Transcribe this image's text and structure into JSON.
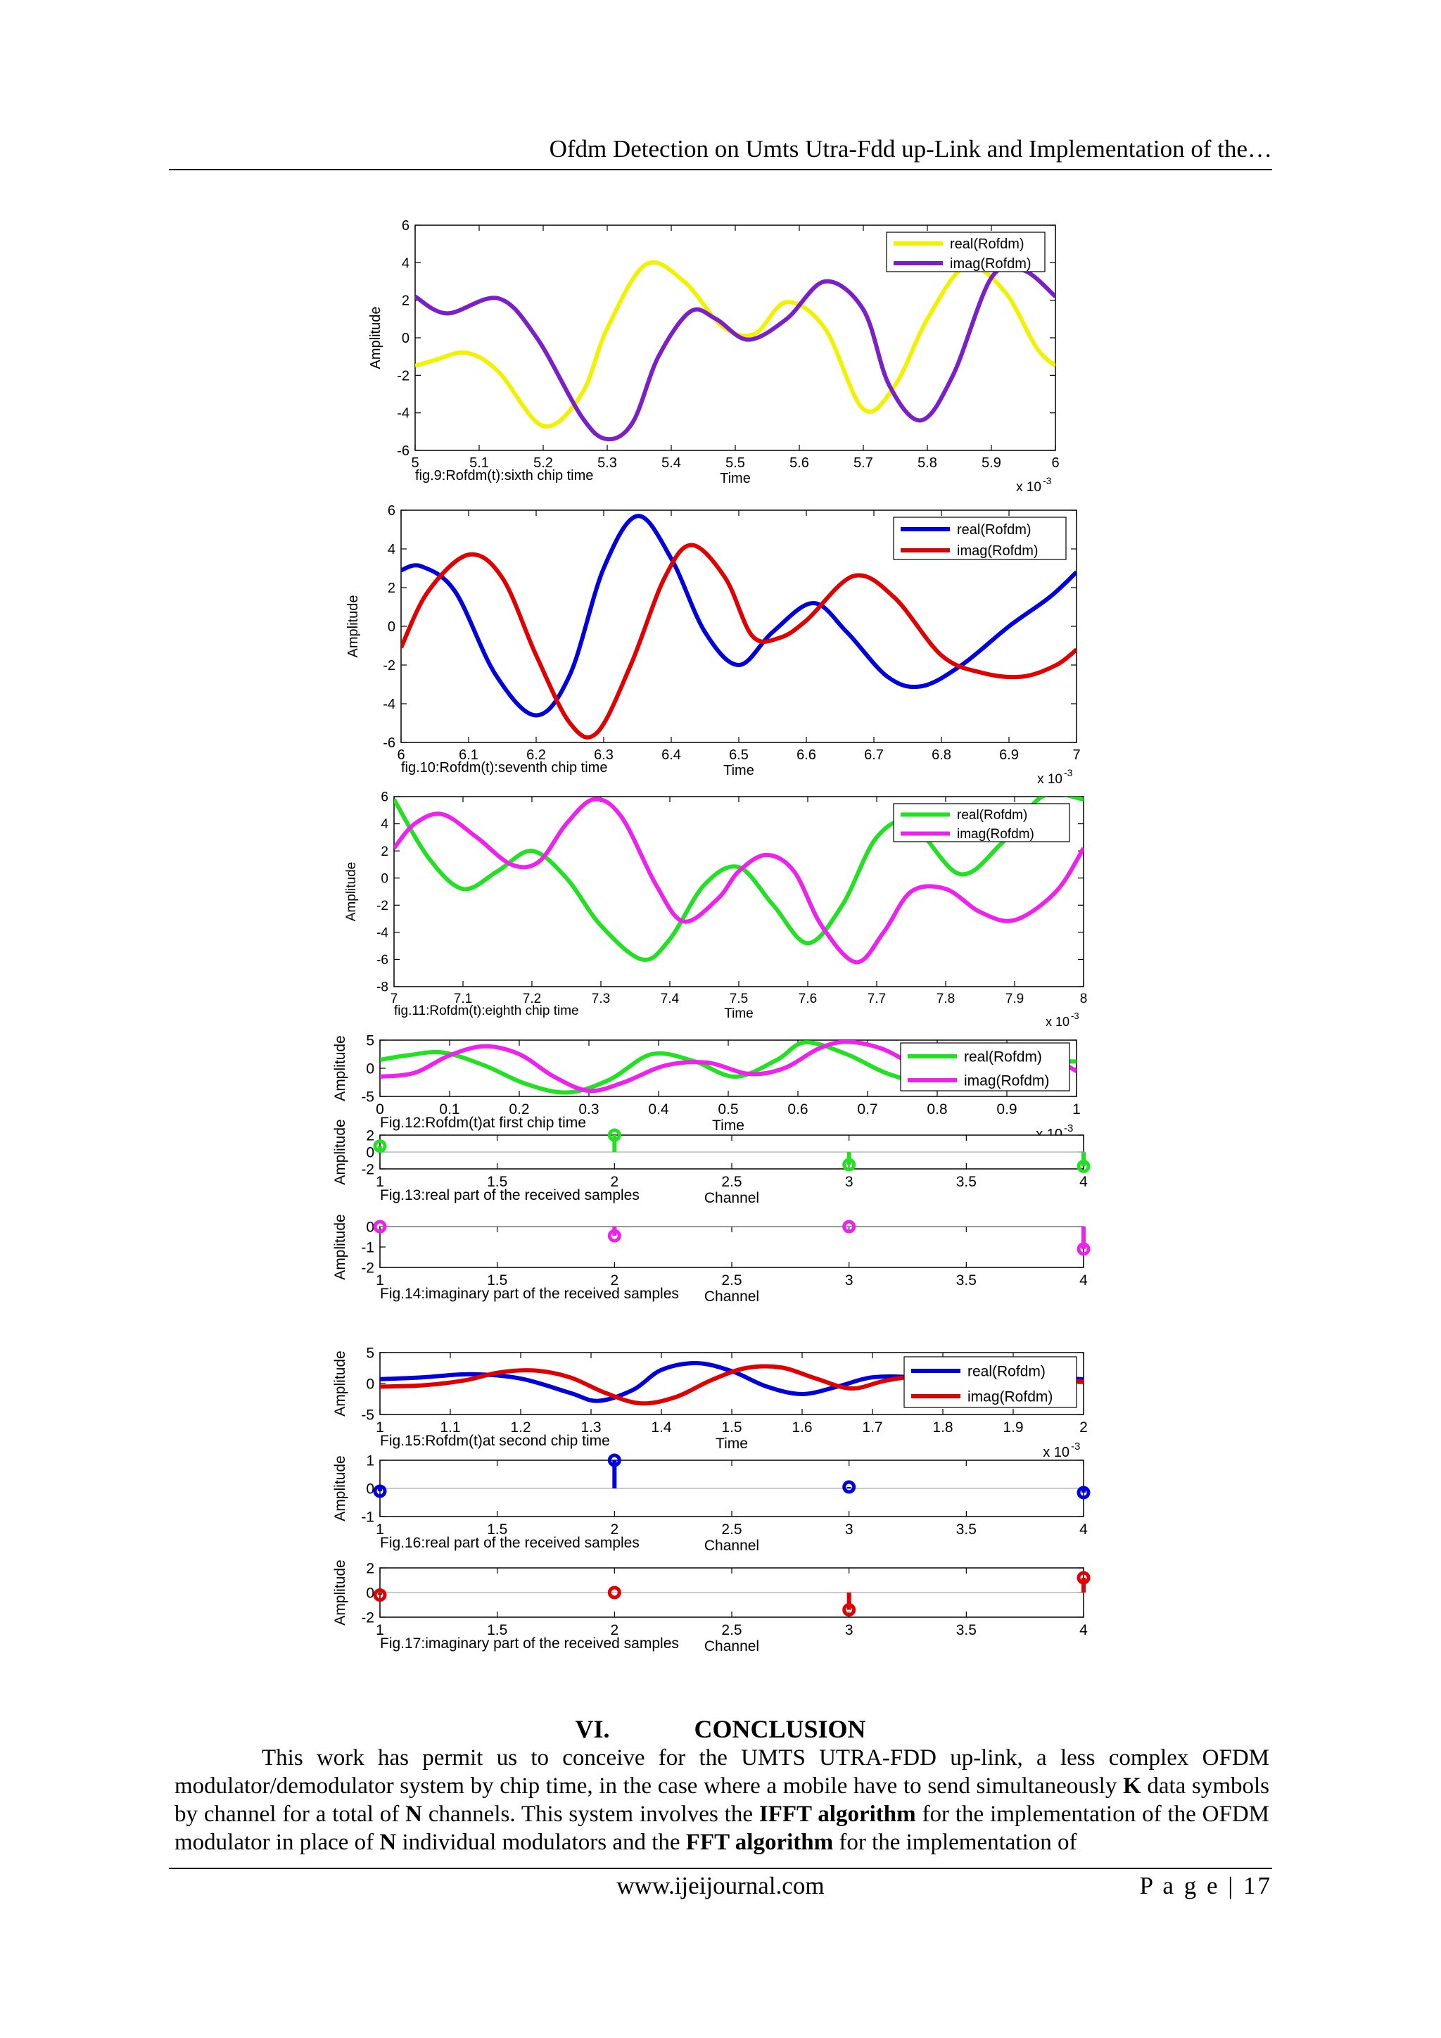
{
  "header": {
    "running_title": "Ofdm Detection on Umts Utra-Fdd up-Link and Implementation of the…"
  },
  "figures": [
    {
      "id": "fig9",
      "caption": "fig.9:Rofdm(t):sixth chip time",
      "xlabel": "Time",
      "ylabel": "Amplitude",
      "xmult": "x 10",
      "xexp": "-3",
      "xlim": [
        5,
        6
      ],
      "ylim": [
        -6,
        6
      ],
      "xticks": [
        "5",
        "5.1",
        "5.2",
        "5.3",
        "5.4",
        "5.5",
        "5.6",
        "5.7",
        "5.8",
        "5.9",
        "6"
      ],
      "yticks": [
        "-6",
        "-4",
        "-2",
        "0",
        "2",
        "4",
        "6"
      ],
      "legend": [
        "real(Rofdm)",
        "imag(Rofdm)"
      ],
      "colors": [
        "#f2f200",
        "#7a1fc9"
      ],
      "series": [
        {
          "name": "real(Rofdm)",
          "x": [
            5.0,
            5.03,
            5.08,
            5.13,
            5.2,
            5.26,
            5.3,
            5.36,
            5.42,
            5.48,
            5.53,
            5.58,
            5.64,
            5.7,
            5.75,
            5.8,
            5.86,
            5.92,
            5.97,
            6.0
          ],
          "y": [
            -1.5,
            -1.2,
            -0.8,
            -1.8,
            -4.7,
            -3,
            0.5,
            3.9,
            3,
            0.6,
            0.2,
            1.9,
            0.5,
            -3.8,
            -2.5,
            1,
            3.8,
            2.5,
            -0.5,
            -1.5
          ]
        },
        {
          "name": "imag(Rofdm)",
          "x": [
            5.0,
            5.05,
            5.13,
            5.19,
            5.26,
            5.3,
            5.34,
            5.38,
            5.43,
            5.47,
            5.52,
            5.58,
            5.64,
            5.7,
            5.74,
            5.79,
            5.84,
            5.9,
            5.95,
            6.0
          ],
          "y": [
            2.2,
            1.3,
            2.1,
            0,
            -4.2,
            -5.4,
            -4.5,
            -1,
            1.4,
            1,
            -0.1,
            1,
            3,
            1.5,
            -2.5,
            -4.4,
            -2,
            3.2,
            3.6,
            2.2
          ]
        }
      ]
    },
    {
      "id": "fig10",
      "caption": "fig.10:Rofdm(t):seventh chip time",
      "xlabel": "Time",
      "ylabel": "Amplitude",
      "xmult": "x 10",
      "xexp": "-3",
      "xlim": [
        6,
        7
      ],
      "ylim": [
        -6,
        6
      ],
      "xticks": [
        "6",
        "6.1",
        "6.2",
        "6.3",
        "6.4",
        "6.5",
        "6.6",
        "6.7",
        "6.8",
        "6.9",
        "7"
      ],
      "yticks": [
        "-6",
        "-4",
        "-2",
        "0",
        "2",
        "4",
        "6"
      ],
      "legend": [
        "real(Rofdm)",
        "imag(Rofdm)"
      ],
      "colors": [
        "#0000dd",
        "#e00000"
      ],
      "series": [
        {
          "name": "real(Rofdm)",
          "x": [
            6.0,
            6.03,
            6.08,
            6.14,
            6.2,
            6.25,
            6.3,
            6.35,
            6.4,
            6.45,
            6.5,
            6.55,
            6.61,
            6.66,
            6.72,
            6.77,
            6.83,
            6.9,
            6.96,
            7.0
          ],
          "y": [
            2.9,
            3.1,
            1.8,
            -2.5,
            -4.6,
            -2.5,
            3,
            5.7,
            3.5,
            -0.3,
            -2,
            -0.3,
            1.2,
            -0.3,
            -2.6,
            -3.1,
            -2,
            0,
            1.5,
            2.8
          ]
        },
        {
          "name": "imag(Rofdm)",
          "x": [
            6.0,
            6.04,
            6.1,
            6.15,
            6.2,
            6.25,
            6.29,
            6.34,
            6.39,
            6.43,
            6.48,
            6.52,
            6.56,
            6.6,
            6.67,
            6.73,
            6.8,
            6.86,
            6.92,
            6.97,
            7.0
          ],
          "y": [
            -1.1,
            1.8,
            3.7,
            2.5,
            -1.5,
            -5,
            -5.5,
            -2,
            2.5,
            4.2,
            2.5,
            -0.5,
            -0.6,
            0.3,
            2.6,
            1.5,
            -1.5,
            -2.4,
            -2.6,
            -2,
            -1.2
          ]
        }
      ]
    },
    {
      "id": "fig11",
      "caption": "fig.11:Rofdm(t):eighth chip time",
      "xlabel": "Time",
      "ylabel": "Amplitude",
      "xmult": "x 10",
      "xexp": "-3",
      "xlim": [
        7,
        8
      ],
      "ylim": [
        -8,
        6
      ],
      "xticks": [
        "7",
        "7.1",
        "7.2",
        "7.3",
        "7.4",
        "7.5",
        "7.6",
        "7.7",
        "7.8",
        "7.9",
        "8"
      ],
      "yticks": [
        "-8",
        "-6",
        "-4",
        "-2",
        "0",
        "2",
        "4",
        "6"
      ],
      "legend": [
        "real(Rofdm)",
        "imag(Rofdm)"
      ],
      "colors": [
        "#22e022",
        "#ee22ee"
      ],
      "series": [
        {
          "name": "real(Rofdm)",
          "x": [
            7.0,
            7.05,
            7.1,
            7.15,
            7.2,
            7.25,
            7.3,
            7.36,
            7.4,
            7.45,
            7.5,
            7.55,
            7.6,
            7.65,
            7.7,
            7.75,
            7.82,
            7.88,
            7.94,
            8.0
          ],
          "y": [
            5.8,
            1.5,
            -0.8,
            0.5,
            2,
            0,
            -3.5,
            -6,
            -4.5,
            -0.5,
            0.8,
            -2,
            -4.8,
            -2,
            3,
            4,
            0.3,
            2.5,
            6,
            5.8
          ]
        },
        {
          "name": "imag(Rofdm)",
          "x": [
            7.0,
            7.03,
            7.07,
            7.12,
            7.17,
            7.21,
            7.25,
            7.29,
            7.33,
            7.38,
            7.42,
            7.47,
            7.5,
            7.54,
            7.58,
            7.62,
            7.67,
            7.71,
            7.75,
            7.8,
            7.85,
            7.9,
            7.96,
            8.0
          ],
          "y": [
            2.2,
            4,
            4.7,
            3,
            1,
            1.2,
            4,
            5.8,
            4.5,
            -0.5,
            -3.2,
            -1.5,
            0.5,
            1.7,
            0.5,
            -3.5,
            -6.2,
            -4,
            -1,
            -0.8,
            -2.5,
            -3.1,
            -1,
            2.2
          ]
        }
      ]
    },
    {
      "id": "fig12",
      "caption": "Fig.12:Rofdm(t)at first chip time",
      "xlabel": "Time",
      "ylabel": "Amplitude",
      "xmult": "x 10",
      "xexp": "-3",
      "xlim": [
        0,
        1
      ],
      "ylim": [
        -5,
        5
      ],
      "xticks": [
        "0",
        "0.1",
        "0.2",
        "0.3",
        "0.4",
        "0.5",
        "0.6",
        "0.7",
        "0.8",
        "0.9",
        "1"
      ],
      "yticks": [
        "-5",
        "0",
        "5"
      ],
      "legend": [
        "real(Rofdm)",
        "imag(Rofdm)"
      ],
      "colors": [
        "#22e022",
        "#ee22ee"
      ],
      "series": [
        {
          "name": "real(Rofdm)",
          "x": [
            0.0,
            0.04,
            0.09,
            0.15,
            0.21,
            0.27,
            0.33,
            0.39,
            0.45,
            0.51,
            0.57,
            0.61,
            0.67,
            0.73,
            0.8,
            0.88,
            0.95,
            1.0
          ],
          "y": [
            1.5,
            2.3,
            2.8,
            0.5,
            -2.8,
            -4.3,
            -2,
            2.5,
            1.3,
            -1.5,
            1.5,
            4.6,
            2.5,
            -1,
            -3,
            -1.5,
            1,
            1.2
          ]
        },
        {
          "name": "imag(Rofdm)",
          "x": [
            0.0,
            0.05,
            0.1,
            0.15,
            0.2,
            0.25,
            0.3,
            0.35,
            0.41,
            0.47,
            0.53,
            0.58,
            0.63,
            0.67,
            0.72,
            0.77,
            0.83,
            0.9,
            0.96,
            1.0
          ],
          "y": [
            -1.5,
            -0.8,
            2.3,
            3.9,
            2.5,
            -1.5,
            -4,
            -2.5,
            0.5,
            1,
            -1,
            0,
            3.5,
            4.7,
            3.5,
            0.5,
            -1.5,
            -1,
            1.5,
            -0.5
          ]
        }
      ]
    },
    {
      "id": "fig15",
      "caption": "Fig.15:Rofdm(t)at second chip time",
      "xlabel": "Time",
      "ylabel": "Amplitude",
      "xmult": "x 10",
      "xexp": "-3",
      "xlim": [
        1,
        2
      ],
      "ylim": [
        -5,
        5
      ],
      "xticks": [
        "1",
        "1.1",
        "1.2",
        "1.3",
        "1.4",
        "1.5",
        "1.6",
        "1.7",
        "1.8",
        "1.9",
        "2"
      ],
      "yticks": [
        "-5",
        "0",
        "5"
      ],
      "legend": [
        "real(Rofdm)",
        "imag(Rofdm)"
      ],
      "colors": [
        "#0000dd",
        "#e00000"
      ],
      "series": [
        {
          "name": "real(Rofdm)",
          "x": [
            1.0,
            1.06,
            1.13,
            1.2,
            1.27,
            1.31,
            1.36,
            1.4,
            1.45,
            1.5,
            1.55,
            1.6,
            1.65,
            1.7,
            1.76,
            1.83,
            1.9,
            1.96,
            2.0
          ],
          "y": [
            0.7,
            1,
            1.5,
            0.8,
            -1.5,
            -2.8,
            -1,
            2.2,
            3.3,
            2,
            -0.5,
            -1.7,
            -0.5,
            1,
            1,
            0.3,
            0.5,
            0.8,
            0.7
          ]
        },
        {
          "name": "imag(Rofdm)",
          "x": [
            1.0,
            1.06,
            1.12,
            1.17,
            1.22,
            1.27,
            1.32,
            1.37,
            1.42,
            1.47,
            1.52,
            1.57,
            1.62,
            1.67,
            1.72,
            1.78,
            1.85,
            1.92,
            2.0
          ],
          "y": [
            -0.5,
            -0.3,
            0.5,
            1.8,
            2.1,
            1,
            -1.5,
            -3.2,
            -2.2,
            0.5,
            2.5,
            2.6,
            0.8,
            -0.8,
            0.5,
            1.4,
            1.2,
            0.6,
            0.3
          ]
        }
      ]
    }
  ],
  "stems": [
    {
      "id": "fig13",
      "caption": "Fig.13:real part of the received samples",
      "xlabel": "Channel",
      "ylabel": "Amplitude",
      "color": "#22e022",
      "xlim": [
        1,
        4
      ],
      "ylim": [
        -2,
        2
      ],
      "xticks": [
        "1",
        "1.5",
        "2",
        "2.5",
        "3",
        "3.5",
        "4"
      ],
      "yticks": [
        "-2",
        "0",
        "2"
      ],
      "x": [
        1,
        2,
        3,
        4
      ],
      "y": [
        0.7,
        2,
        -1.5,
        -1.7
      ]
    },
    {
      "id": "fig14",
      "caption": "Fig.14:imaginary part of the received samples",
      "xlabel": "Channel",
      "ylabel": "Amplitude",
      "color": "#ee22ee",
      "xlim": [
        1,
        4
      ],
      "ylim": [
        -2,
        0
      ],
      "xticks": [
        "1",
        "1.5",
        "2",
        "2.5",
        "3",
        "3.5",
        "4"
      ],
      "yticks": [
        "-2",
        "-1",
        "0"
      ],
      "x": [
        1,
        2,
        3,
        4
      ],
      "y": [
        0,
        -0.45,
        0,
        -1.1
      ]
    },
    {
      "id": "fig16",
      "caption": "Fig.16:real part of the received samples",
      "xlabel": "Channel",
      "ylabel": "Amplitude",
      "color": "#0000dd",
      "xlim": [
        1,
        4
      ],
      "ylim": [
        -1,
        1
      ],
      "xticks": [
        "1",
        "1.5",
        "2",
        "2.5",
        "3",
        "3.5",
        "4"
      ],
      "yticks": [
        "-1",
        "0",
        "1"
      ],
      "x": [
        1,
        2,
        3,
        4
      ],
      "y": [
        -0.1,
        1,
        0.05,
        -0.15
      ]
    },
    {
      "id": "fig17",
      "caption": "Fig.17:imaginary part of the received samples",
      "xlabel": "Channel",
      "ylabel": "Amplitude",
      "color": "#e00000",
      "xlim": [
        1,
        4
      ],
      "ylim": [
        -2,
        2
      ],
      "xticks": [
        "1",
        "1.5",
        "2",
        "2.5",
        "3",
        "3.5",
        "4"
      ],
      "yticks": [
        "-2",
        "0",
        "2"
      ],
      "x": [
        1,
        2,
        3,
        4
      ],
      "y": [
        -0.2,
        0,
        -1.4,
        1.2
      ]
    }
  ],
  "section": {
    "number": "VI.",
    "title": "CONCLUSION"
  },
  "conclusion": {
    "t1": "This work has permit us to conceive for the UMTS UTRA-FDD up-link, a less complex OFDM modulator/demodulator system by chip time, in the case where a mobile have to send simultaneously ",
    "b1": "K",
    "t2": " data symbols by channel  for a total of ",
    "b2": "N",
    "t3": " channels. This system involves the ",
    "b3": "IFFT algorithm",
    "t4": " for the implementation of the OFDM modulator in place of ",
    "b4": "N",
    "t5": " individual modulators and the ",
    "b5": "FFT algorithm",
    "t6": " for the implementation of"
  },
  "footer": {
    "url": "www.ijeijournal.com",
    "page": "P a g e | 17"
  }
}
